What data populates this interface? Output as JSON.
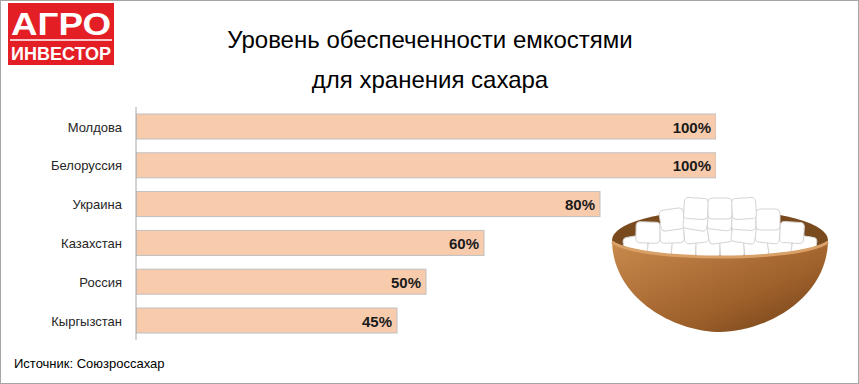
{
  "chart_data": {
    "type": "bar",
    "orientation": "horizontal",
    "title": "Уровень обеспеченности емкостями",
    "subtitle": "для хранения сахара",
    "categories": [
      "Молдова",
      "Белоруссия",
      "Украина",
      "Казахстан",
      "Россия",
      "Кыргызстан"
    ],
    "values": [
      100,
      100,
      80,
      60,
      50,
      45
    ],
    "value_labels": [
      "100%",
      "100%",
      "80%",
      "60%",
      "50%",
      "45%"
    ],
    "color": "#f8cbad",
    "xlim": [
      0,
      100
    ],
    "grid": false,
    "data_labels": true,
    "tick_labels": "y",
    "annotations": [
      "Источник: Союзроссахар"
    ]
  },
  "logo": {
    "lines": [
      "АГРО",
      "ИНВЕСТОР"
    ]
  }
}
